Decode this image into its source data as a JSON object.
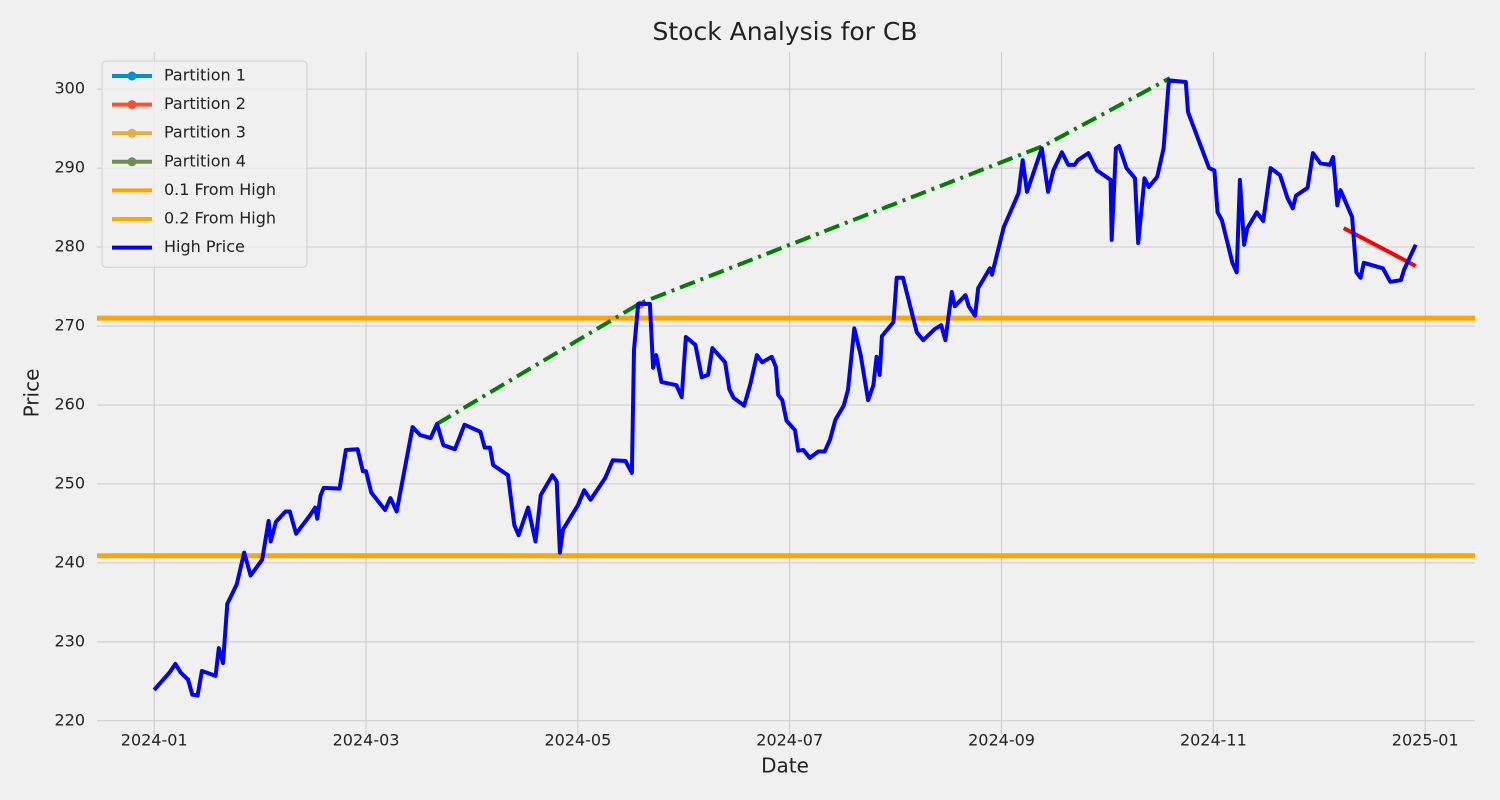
{
  "chart_data": {
    "type": "line",
    "title": "Stock Analysis for CB",
    "xlabel": "Date",
    "ylabel": "Price",
    "xlim": [
      -0.54,
      12.47
    ],
    "ylim": [
      218.2,
      304.7
    ],
    "xticks": [
      {
        "value": 0,
        "label": "2024-01"
      },
      {
        "value": 2,
        "label": "2024-03"
      },
      {
        "value": 4,
        "label": "2024-05"
      },
      {
        "value": 6,
        "label": "2024-07"
      },
      {
        "value": 8,
        "label": "2024-09"
      },
      {
        "value": 10,
        "label": "2024-11"
      },
      {
        "value": 12,
        "label": "2025-01"
      }
    ],
    "yticks": [
      220,
      230,
      240,
      250,
      260,
      270,
      280,
      290,
      300
    ],
    "grid": true,
    "legend": "upper left",
    "series": [
      {
        "name": "Partition 1",
        "color": "#008fd5",
        "marker": true,
        "x": [],
        "values": []
      },
      {
        "name": "Partition 2",
        "color": "#fc4f30",
        "marker": true,
        "x": [
          4.59
        ],
        "values": [
          272.7
        ]
      },
      {
        "name": "Partition 3",
        "color": "#e5ae38",
        "marker": true,
        "x": [],
        "values": []
      },
      {
        "name": "Partition 4",
        "color": "#6d904f",
        "marker": true,
        "x": [],
        "values": []
      },
      {
        "name": "0.1 From High",
        "color": "#ffa500",
        "level": 271.0
      },
      {
        "name": "0.2 From High",
        "color": "#ffa500",
        "level": 240.9
      },
      {
        "name": "High Price",
        "color": "#0000ff",
        "x": [
          0,
          0.15,
          0.2,
          0.25,
          0.32,
          0.36,
          0.41,
          0.45,
          0.58,
          0.61,
          0.65,
          0.69,
          0.78,
          0.85,
          0.91,
          1.02,
          1.08,
          1.1,
          1.15,
          1.24,
          1.28,
          1.34,
          1.47,
          1.52,
          1.54,
          1.57,
          1.6,
          1.75,
          1.81,
          1.92,
          1.97,
          2.0,
          2.05,
          2.18,
          2.23,
          2.29,
          2.44,
          2.51,
          2.61,
          2.67,
          2.73,
          2.84,
          2.93,
          3.08,
          3.12,
          3.17,
          3.2,
          3.34,
          3.4,
          3.44,
          3.53,
          3.6,
          3.65,
          3.76,
          3.8,
          3.83,
          3.86,
          4.0,
          4.06,
          4.12,
          4.2,
          4.26,
          4.33,
          4.45,
          4.51,
          4.53,
          4.57,
          4.68,
          4.71,
          4.74,
          4.79,
          4.93,
          4.98,
          5.02,
          5.11,
          5.17,
          5.23,
          5.27,
          5.39,
          5.43,
          5.47,
          5.57,
          5.63,
          5.69,
          5.74,
          5.83,
          5.87,
          5.89,
          5.93,
          5.97,
          6.05,
          6.08,
          6.13,
          6.19,
          6.27,
          6.33,
          6.38,
          6.43,
          6.51,
          6.55,
          6.61,
          6.67,
          6.74,
          6.79,
          6.82,
          6.85,
          6.87,
          6.98,
          7.01,
          7.07,
          7.2,
          7.26,
          7.37,
          7.43,
          7.47,
          7.53,
          7.56,
          7.66,
          7.69,
          7.75,
          7.78,
          7.89,
          7.91,
          8.02,
          8.16,
          8.2,
          8.24,
          8.38,
          8.44,
          8.49,
          8.57,
          8.63,
          8.69,
          8.72,
          8.82,
          8.9,
          9.03,
          9.04,
          9.08,
          9.11,
          9.18,
          9.26,
          9.29,
          9.35,
          9.39,
          9.47,
          9.53,
          9.58,
          9.74,
          9.76,
          9.85,
          9.96,
          10.01,
          10.04,
          10.08,
          10.18,
          10.22,
          10.25,
          10.29,
          10.32,
          10.41,
          10.47,
          10.54,
          10.63,
          10.7,
          10.75,
          10.78,
          10.89,
          10.94,
          11.01,
          11.1,
          11.13,
          11.17,
          11.2,
          11.31,
          11.35,
          11.39,
          11.42,
          11.6,
          11.67,
          11.77,
          11.8,
          11.91
        ],
        "values": [
          223.9,
          226.2,
          227.2,
          226.1,
          225.2,
          223.3,
          223.2,
          226.3,
          225.7,
          229.2,
          227.3,
          234.8,
          237.3,
          241.3,
          238.4,
          240.4,
          245.3,
          242.7,
          245.2,
          246.5,
          246.5,
          243.7,
          246.0,
          247.0,
          245.6,
          248.5,
          249.5,
          249.4,
          254.3,
          254.4,
          251.6,
          251.6,
          248.9,
          246.7,
          248.2,
          246.5,
          257.2,
          256.2,
          255.8,
          257.6,
          254.9,
          254.4,
          257.5,
          256.6,
          254.6,
          254.6,
          252.4,
          251.1,
          244.8,
          243.5,
          247.0,
          242.7,
          248.6,
          251.1,
          250.3,
          241.3,
          244.2,
          247.3,
          249.2,
          248.0,
          249.6,
          250.8,
          253.0,
          252.9,
          251.4,
          267.0,
          272.8,
          272.8,
          264.7,
          266.3,
          262.9,
          262.5,
          261.0,
          268.6,
          267.6,
          263.5,
          263.8,
          267.2,
          265.4,
          262.0,
          260.9,
          259.9,
          262.7,
          266.3,
          265.4,
          266.1,
          264.8,
          261.3,
          260.6,
          258.0,
          256.8,
          254.2,
          254.3,
          253.3,
          254.1,
          254.1,
          255.6,
          258.1,
          259.9,
          261.9,
          269.7,
          266.3,
          260.6,
          262.5,
          266.1,
          263.8,
          268.7,
          270.5,
          276.1,
          276.1,
          269.2,
          268.2,
          269.6,
          270.1,
          268.2,
          274.3,
          272.5,
          273.9,
          272.5,
          271.3,
          274.8,
          277.3,
          276.5,
          282.5,
          286.8,
          291.0,
          287.0,
          292.5,
          287.0,
          289.7,
          292.0,
          290.4,
          290.4,
          291.0,
          291.9,
          289.7,
          288.5,
          280.9,
          292.5,
          292.8,
          290.0,
          288.7,
          280.5,
          288.7,
          287.6,
          288.9,
          292.5,
          301.1,
          300.9,
          297.1,
          293.9,
          290.0,
          289.7,
          284.4,
          283.4,
          278.0,
          276.8,
          288.5,
          280.3,
          282.4,
          284.4,
          283.3,
          290.0,
          289.1,
          286.2,
          284.9,
          286.5,
          287.5,
          291.9,
          290.6,
          290.4,
          291.4,
          285.3,
          287.2,
          283.8,
          276.8,
          276.1,
          278.0,
          277.3,
          275.6,
          275.8,
          277.1,
          280.3
        ]
      }
    ],
    "trend_lines": [
      {
        "color": "#008000",
        "dash": "dashdot",
        "x": [
          2.67,
          4.59,
          8.41,
          9.59
        ],
        "values": [
          257.6,
          272.9,
          292.9,
          301.4
        ]
      },
      {
        "color": "#ff0000",
        "x": [
          11.23,
          11.91
        ],
        "values": [
          282.4,
          277.6
        ]
      }
    ]
  }
}
